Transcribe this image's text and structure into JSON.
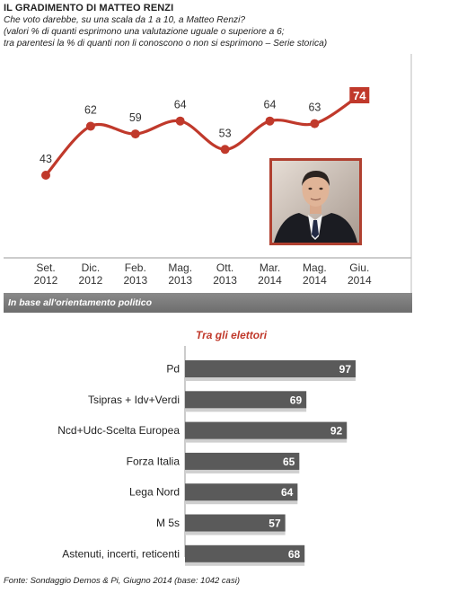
{
  "header": {
    "title": "IL GRADIMENTO DI MATTEO RENZI",
    "subtitle_lines": [
      "Che voto darebbe, su una scala da 1 a 10, a Matteo Renzi?",
      "(valori % di quanti esprimono una valutazione uguale o superiore a 6;",
      "tra parentesi la % di quanti non li conoscono o non si esprimono – Serie storica)"
    ]
  },
  "section": {
    "label": "In base all'orientamento politico"
  },
  "bar_section_title": "Tra gli elettori",
  "footer": "Fonte: Sondaggio Demos & Pi, Giugno 2014 (base: 1042 casi)",
  "colors": {
    "line": "#c0392b",
    "highlight": "#c0392b",
    "bar": "#5a5a5a",
    "section": "#7a7a7a"
  },
  "photo": {
    "icon": "person-photo-icon"
  },
  "chart_data": [
    {
      "type": "line",
      "categories": [
        [
          "Set.",
          "2012"
        ],
        [
          "Dic.",
          "2012"
        ],
        [
          "Feb.",
          "2013"
        ],
        [
          "Mag.",
          "2013"
        ],
        [
          "Ott.",
          "2013"
        ],
        [
          "Mar.",
          "2014"
        ],
        [
          "Mag.",
          "2014"
        ],
        [
          "Giu.",
          "2014"
        ]
      ],
      "values": [
        43,
        62,
        59,
        64,
        53,
        64,
        63,
        74
      ],
      "highlight_index": 7,
      "grid": false
    },
    {
      "type": "bar",
      "orientation": "horizontal",
      "title": "Tra gli elettori",
      "categories": [
        "Pd",
        "Tsipras + Idv+Verdi",
        "Ncd+Udc-Scelta Europea",
        "Forza Italia",
        "Lega Nord",
        "M 5s",
        "Astenuti, incerti, reticenti"
      ],
      "values": [
        97,
        69,
        92,
        65,
        64,
        57,
        68
      ],
      "xlim": [
        0,
        100
      ]
    }
  ]
}
